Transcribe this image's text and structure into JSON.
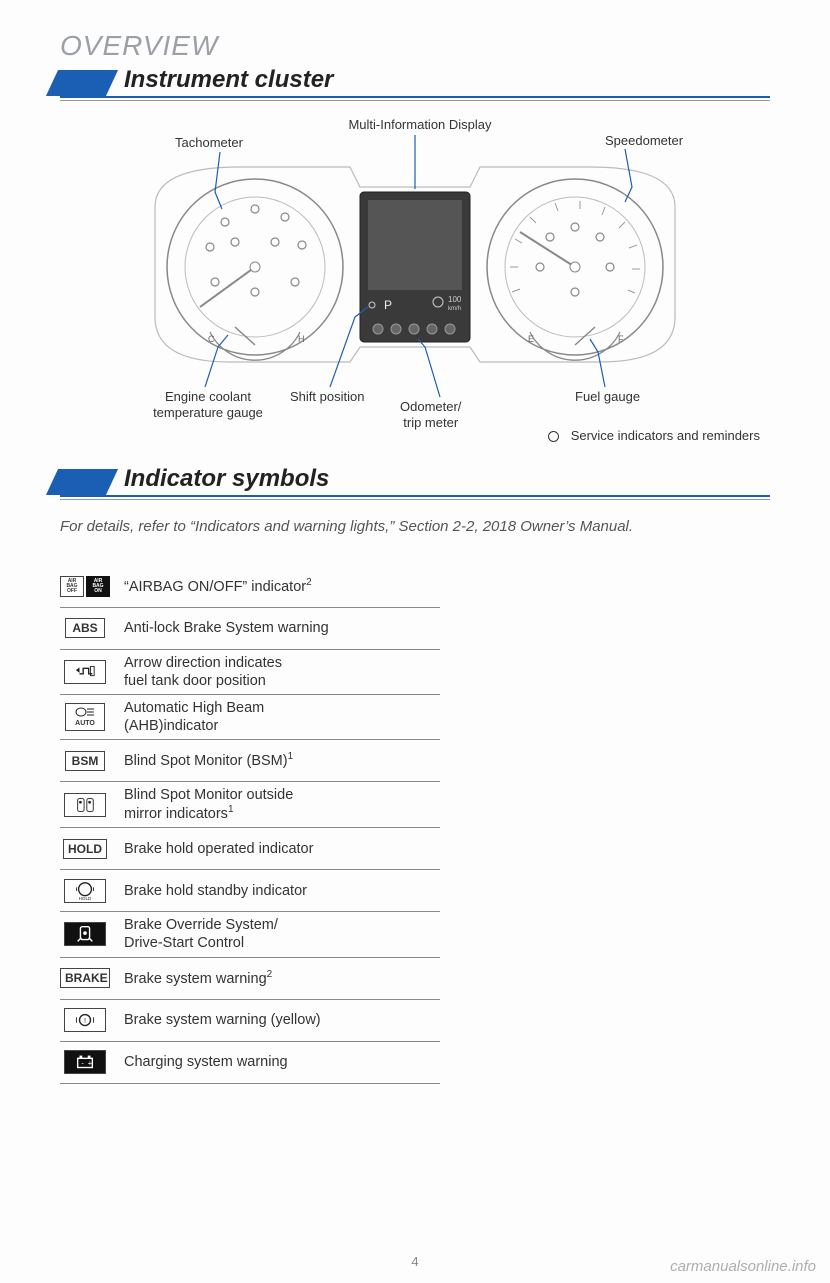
{
  "header": {
    "overview": "OVERVIEW",
    "section1_title": "Instrument cluster",
    "section2_title": "Indicator symbols"
  },
  "diagram": {
    "callouts": {
      "tachometer": "Tachometer",
      "multi_info": "Multi-Information Display",
      "speedometer": "Speedometer",
      "coolant": "Engine coolant\ntemperature gauge",
      "shift": "Shift position",
      "odometer": "Odometer/\ntrip meter",
      "fuel": "Fuel gauge"
    },
    "mid_text": {
      "gear": "P",
      "speed": "100",
      "unit": "km/h"
    },
    "legend": "Service indicators and reminders",
    "colors": {
      "stroke": "#888888",
      "stroke_light": "#bbbbbb",
      "callout_line": "#1a5fb4",
      "screen_bg": "#3a3a3a",
      "screen_inner": "#555555"
    }
  },
  "ref_note": "For details, refer to “Indicators and warning lights,” Section 2-2, 2018 Owner’s Manual.",
  "indicators": [
    {
      "icon_text": "AIR BAG\nOFF ON",
      "icon_style": "double",
      "label": "“AIRBAG ON/OFF” indicator",
      "sup": "2"
    },
    {
      "icon_text": "ABS",
      "icon_style": "text",
      "label": "Anti-lock Brake System warning"
    },
    {
      "icon_text": "fuel-arrow",
      "icon_style": "svg",
      "label": "Arrow direction indicates\nfuel tank door position"
    },
    {
      "icon_text": "AUTO",
      "icon_style": "ahb",
      "label": "Automatic High Beam\n(AHB)indicator"
    },
    {
      "icon_text": "BSM",
      "icon_style": "text",
      "label": "Blind Spot Monitor (BSM)",
      "sup": "1"
    },
    {
      "icon_text": "mirror",
      "icon_style": "svg",
      "label": "Blind Spot Monitor outside\nmirror indicators",
      "sup": "1"
    },
    {
      "icon_text": "HOLD",
      "icon_style": "text",
      "label": "Brake hold operated indicator"
    },
    {
      "icon_text": "hold-circle",
      "icon_style": "svg",
      "label": "Brake hold standby indicator"
    },
    {
      "icon_text": "override",
      "icon_style": "dark-svg",
      "label": "Brake Override System/\nDrive-Start Control"
    },
    {
      "icon_text": "BRAKE",
      "icon_style": "text",
      "label": "Brake system warning",
      "sup": "2"
    },
    {
      "icon_text": "brake-circle",
      "icon_style": "svg",
      "label": "Brake system warning (yellow)"
    },
    {
      "icon_text": "battery",
      "icon_style": "dark-svg",
      "label": "Charging system warning"
    }
  ],
  "page_number": "4",
  "watermark": "carmanualsonline.info",
  "style": {
    "accent": "#1a5fb4",
    "text": "#333333",
    "muted": "#888888"
  }
}
